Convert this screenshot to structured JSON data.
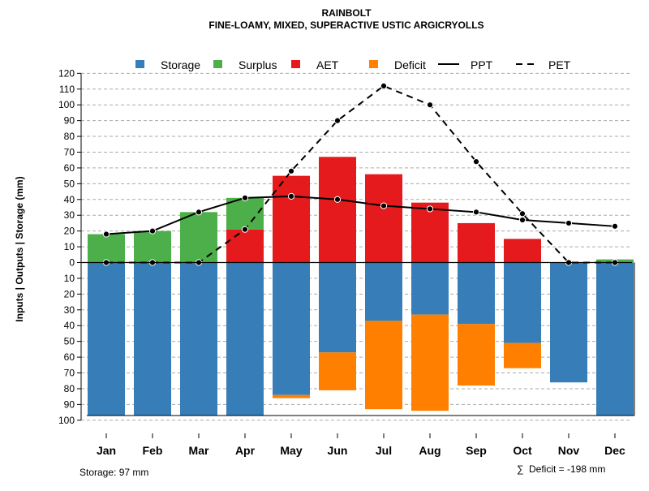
{
  "chart_data": {
    "type": "bar",
    "title": "RAINBOLT",
    "subtitle": "FINE-LOAMY, MIXED, SUPERACTIVE USTIC ARGICRYOLLS",
    "ylabel": "Inputs | Outputs | Storage    (mm)",
    "ylim": [
      -100,
      120
    ],
    "y_ticks": [
      120,
      110,
      100,
      90,
      80,
      70,
      60,
      50,
      40,
      30,
      20,
      10,
      0,
      -10,
      -20,
      -30,
      -40,
      -50,
      -60,
      -70,
      -80,
      -90,
      -100
    ],
    "y_tick_labels": [
      "120",
      "110",
      "100",
      "90",
      "80",
      "70",
      "60",
      "50",
      "40",
      "30",
      "20",
      "10",
      "0",
      "10",
      "20",
      "30",
      "40",
      "50",
      "60",
      "70",
      "80",
      "90",
      "100"
    ],
    "categories": [
      "Jan",
      "Feb",
      "Mar",
      "Apr",
      "May",
      "Jun",
      "Jul",
      "Aug",
      "Sep",
      "Oct",
      "Nov",
      "Dec"
    ],
    "series": [
      {
        "name": "Storage",
        "kind": "bar-below",
        "color": "#377EB8",
        "values": [
          97,
          97,
          97,
          97,
          84,
          57,
          37,
          33,
          39,
          51,
          76,
          97
        ]
      },
      {
        "name": "Surplus",
        "kind": "bar-above-stack",
        "color": "#4DAF4A",
        "values": [
          18,
          20,
          32,
          20,
          0,
          0,
          0,
          0,
          0,
          0,
          0,
          2
        ]
      },
      {
        "name": "AET",
        "kind": "bar-above",
        "color": "#E41A1C",
        "values": [
          0,
          0,
          0,
          21,
          55,
          67,
          56,
          38,
          25,
          15,
          0,
          0
        ]
      },
      {
        "name": "Deficit",
        "kind": "bar-below-stack",
        "color": "#FF7F00",
        "values": [
          0,
          0,
          0,
          0,
          2,
          24,
          56,
          61,
          39,
          16,
          0,
          0
        ]
      },
      {
        "name": "PPT",
        "kind": "line-solid",
        "color": "#000000",
        "values": [
          18,
          20,
          32,
          41,
          42,
          40,
          36,
          34,
          32,
          27,
          25,
          23
        ]
      },
      {
        "name": "PET",
        "kind": "line-dashed",
        "color": "#000000",
        "values": [
          0,
          0,
          0,
          21,
          58,
          90,
          112,
          100,
          64,
          31,
          0,
          0
        ]
      }
    ],
    "legend": {
      "position": "top",
      "entries": [
        "Storage",
        "Surplus",
        "AET",
        "Deficit",
        "PPT",
        "PET"
      ]
    },
    "grid": true,
    "footer_left": "Storage: 97 mm",
    "footer_right_symbol": "∑",
    "footer_right": "Deficit = -198 mm"
  }
}
